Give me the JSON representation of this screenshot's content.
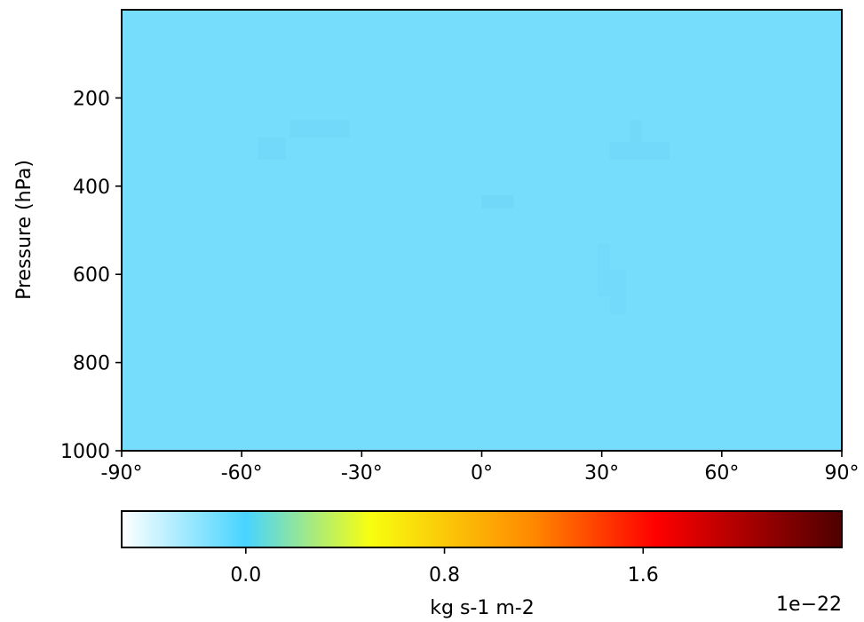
{
  "chart_data": {
    "type": "heatmap",
    "title": "",
    "xlabel": "",
    "ylabel": "Pressure (hPa)",
    "x_range": [
      -90,
      90
    ],
    "x_ticks": [
      -90,
      -60,
      -30,
      0,
      30,
      60,
      90
    ],
    "x_tick_labels": [
      "-90°",
      "-60°",
      "-30°",
      "0°",
      "30°",
      "60°",
      "90°"
    ],
    "y_range": [
      1000,
      0
    ],
    "y_ticks": [
      200,
      400,
      600,
      800,
      1000
    ],
    "y_tick_labels": [
      "200",
      "400",
      "600",
      "800",
      "1000"
    ],
    "field_value_approx": 0.0,
    "background_color": "#76ddfd",
    "patches": [
      {
        "lat": [
          -48,
          -33
        ],
        "p": [
          250,
          290
        ],
        "color": "#73d9fb"
      },
      {
        "lat": [
          -56,
          -49
        ],
        "p": [
          290,
          340
        ],
        "color": "#73d9fb"
      },
      {
        "lat": [
          0,
          8
        ],
        "p": [
          420,
          450
        ],
        "color": "#72d8fa"
      },
      {
        "lat": [
          37,
          40
        ],
        "p": [
          250,
          300
        ],
        "color": "#73d9fb"
      },
      {
        "lat": [
          32,
          47
        ],
        "p": [
          300,
          340
        ],
        "color": "#73d9fb"
      },
      {
        "lat": [
          29,
          32
        ],
        "p": [
          530,
          650
        ],
        "color": "#74dafb"
      },
      {
        "lat": [
          32,
          36
        ],
        "p": [
          590,
          690
        ],
        "color": "#74dafb"
      }
    ],
    "colorbar": {
      "label": "kg s-1 m-2",
      "offset_text": "1e−22",
      "range": [
        -0.5,
        2.4
      ],
      "ticks": [
        0.0,
        0.8,
        1.6
      ],
      "tick_labels": [
        "0.0",
        "0.8",
        "1.6"
      ],
      "colormap_stops": [
        {
          "value": -0.5,
          "color": "#ffffff"
        },
        {
          "value": 0.0,
          "color": "#47d4ff"
        },
        {
          "value": 0.5,
          "color": "#f8fe10"
        },
        {
          "value": 1.15,
          "color": "#ff8a00"
        },
        {
          "value": 1.65,
          "color": "#ff0000"
        },
        {
          "value": 2.4,
          "color": "#4e0000"
        }
      ]
    }
  }
}
